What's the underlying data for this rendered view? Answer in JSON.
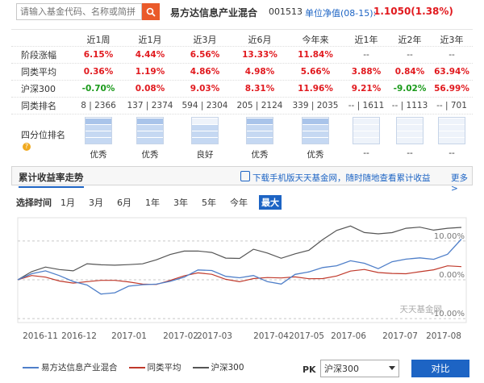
{
  "search": {
    "placeholder": "请输入基金代码、名称或简拼"
  },
  "fund": {
    "name": "易方达信息产业混合",
    "code": "001513",
    "nav_label": "单位净值(08-15):",
    "nav_value": "1.1050(1.38%)"
  },
  "performance": {
    "headers": [
      "近1周",
      "近1月",
      "近3月",
      "近6月",
      "今年来",
      "近1年",
      "近2年",
      "近3年"
    ],
    "rows": [
      {
        "label": "阶段涨幅",
        "values": [
          "6.15%",
          "4.44%",
          "6.56%",
          "13.33%",
          "11.84%",
          "--",
          "--",
          "--"
        ],
        "colors": [
          "red",
          "red",
          "red",
          "red",
          "red",
          "grey",
          "grey",
          "grey"
        ]
      },
      {
        "label": "同类平均",
        "values": [
          "0.36%",
          "1.19%",
          "4.86%",
          "4.98%",
          "5.66%",
          "3.88%",
          "0.84%",
          "63.94%"
        ],
        "colors": [
          "red",
          "red",
          "red",
          "red",
          "red",
          "red",
          "red",
          "red"
        ]
      },
      {
        "label": "沪深300",
        "values": [
          "-0.70%",
          "0.08%",
          "9.03%",
          "8.31%",
          "11.96%",
          "9.21%",
          "-9.02%",
          "56.99%"
        ],
        "colors": [
          "green",
          "red",
          "red",
          "red",
          "red",
          "red",
          "green",
          "red"
        ]
      },
      {
        "label": "同类排名",
        "values": [
          "8 | 2366",
          "137 | 2374",
          "594 | 2304",
          "205 | 2124",
          "339 | 2035",
          "-- | 1611",
          "-- | 1113",
          "-- | 701"
        ],
        "colors": [
          "grey",
          "grey",
          "grey",
          "grey",
          "grey",
          "grey",
          "grey",
          "grey"
        ]
      }
    ],
    "quartile_label": "四分位排名",
    "quartile_help_icon": "question-icon",
    "quartiles": [
      {
        "label": "优秀",
        "level": 4
      },
      {
        "label": "优秀",
        "level": 4
      },
      {
        "label": "良好",
        "level": 3
      },
      {
        "label": "优秀",
        "level": 4
      },
      {
        "label": "优秀",
        "level": 4
      },
      {
        "label": "--",
        "level": 0
      },
      {
        "label": "--",
        "level": 0
      },
      {
        "label": "--",
        "level": 0
      }
    ]
  },
  "trend": {
    "title": "累计收益率走势",
    "download_text": "下载手机版天天基金网，随时随地查看累计收益",
    "more": "更多>",
    "period_label": "选择时间",
    "periods": [
      "1月",
      "3月",
      "6月",
      "1年",
      "3年",
      "5年",
      "今年",
      "最大"
    ],
    "active_period": "最大",
    "watermark": "天天基金网"
  },
  "legend": {
    "fund": "易方达信息产业混合",
    "avg": "同类平均",
    "index": "沪深300"
  },
  "pk": {
    "label": "PK",
    "selected": "沪深300",
    "button": "对比"
  },
  "colors": {
    "fund": "#4f7fc9",
    "avg": "#c0392b",
    "index": "#555555",
    "accent": "#1d64c4"
  },
  "chart_data": {
    "type": "line",
    "x_ticks": [
      "2016-11",
      "2016-12",
      "2017-01",
      "2017-02",
      "2017-03",
      "2017-04",
      "2017-05",
      "2017-06",
      "2017-07",
      "2017-08"
    ],
    "y_ticks": [
      "10.00%",
      "0.00%",
      "-10.00%"
    ],
    "ylim": [
      -11,
      16
    ],
    "series": [
      {
        "name": "易方达信息产业混合",
        "values": [
          0,
          0.8,
          1.5,
          1.0,
          0.3,
          -0.5,
          -3.5,
          -4.0,
          -2.5,
          -1.5,
          -0.5,
          0.5,
          1.0,
          2.0,
          1.5,
          0.5,
          1.0,
          2.0,
          0.0,
          -1.5,
          0.5,
          1.5,
          3.5,
          4.5,
          5.5,
          4.0,
          2.0,
          4.0,
          5.5,
          6.5,
          6.0,
          6.5,
          10.5
        ]
      },
      {
        "name": "同类平均",
        "values": [
          0,
          0.3,
          0.6,
          0.4,
          0.0,
          -0.3,
          -0.8,
          -1.0,
          -0.8,
          -0.5,
          -0.3,
          0.2,
          0.5,
          0.9,
          1.0,
          0.6,
          0.4,
          0.8,
          0.2,
          -0.4,
          0.2,
          0.6,
          1.2,
          1.6,
          2.0,
          1.8,
          1.2,
          1.8,
          2.4,
          2.8,
          2.5,
          2.8,
          3.4
        ]
      },
      {
        "name": "沪深300",
        "values": [
          0,
          2.0,
          4.0,
          3.5,
          2.5,
          3.5,
          3.0,
          3.5,
          4.5,
          5.0,
          5.5,
          6.0,
          6.5,
          7.0,
          7.5,
          6.5,
          6.0,
          7.5,
          6.0,
          5.0,
          7.0,
          8.5,
          11.0,
          12.5,
          13.0,
          11.5,
          12.0,
          13.0,
          14.0,
          13.5,
          12.0,
          12.5,
          13.5
        ]
      }
    ]
  }
}
